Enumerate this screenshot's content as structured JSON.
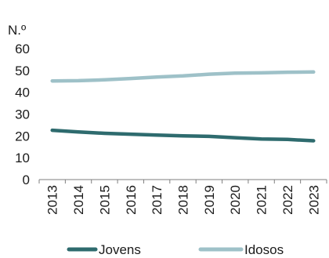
{
  "chart_data": {
    "type": "line",
    "ylabel": "N.º",
    "categories": [
      "2013",
      "2014",
      "2015",
      "2016",
      "2017",
      "2018",
      "2019",
      "2020",
      "2021",
      "2022",
      "2023"
    ],
    "ylim": [
      0,
      60
    ],
    "yticks": [
      0,
      10,
      20,
      30,
      40,
      50,
      60
    ],
    "grid": false,
    "legend_position": "bottom",
    "series": [
      {
        "name": "Jovens",
        "color": "#2e6b6e",
        "values": [
          22.6,
          21.8,
          21.2,
          20.8,
          20.4,
          20.0,
          19.8,
          19.2,
          18.6,
          18.4,
          17.8
        ]
      },
      {
        "name": "Idosos",
        "color": "#9ec1c8",
        "values": [
          45.2,
          45.3,
          45.7,
          46.3,
          47.0,
          47.5,
          48.3,
          48.8,
          48.9,
          49.2,
          49.3
        ]
      }
    ]
  }
}
